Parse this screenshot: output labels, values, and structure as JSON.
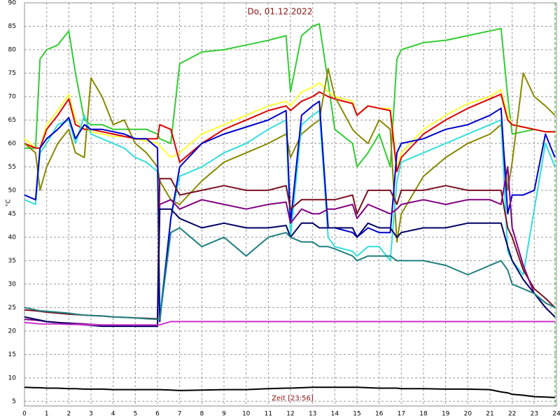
{
  "chart_data": {
    "type": "line",
    "title": "Do, 01.12.2022",
    "y_label": "°C",
    "x_label": "Zeit [23:56]",
    "xlim": [
      0,
      24
    ],
    "xticks": [
      0,
      1,
      2,
      3,
      4,
      5,
      6,
      7,
      8,
      9,
      10,
      11,
      12,
      13,
      14,
      15,
      16,
      17,
      18,
      19,
      20,
      21,
      22,
      23,
      24
    ],
    "ylim": [
      4,
      90
    ],
    "yticks": [
      5,
      10,
      15,
      20,
      25,
      30,
      35,
      40,
      45,
      50,
      55,
      60,
      65,
      70,
      75,
      80,
      85,
      90
    ],
    "grid": true,
    "x": [
      0,
      0.5,
      0.7,
      1,
      1.5,
      2,
      2.3,
      2.7,
      3,
      3.5,
      4,
      4.5,
      5,
      5.5,
      6,
      6.1,
      6.6,
      7,
      8,
      9,
      10,
      11,
      11.8,
      12,
      12.5,
      13,
      13.3,
      13.7,
      14,
      14.8,
      15,
      15.5,
      16,
      16.5,
      16.8,
      17,
      18,
      19,
      20,
      21,
      21.5,
      21.8,
      22,
      22.5,
      23,
      23.5,
      23.93
    ],
    "series": [
      {
        "color": "#33cc33",
        "values": [
          59,
          59,
          78,
          80,
          81,
          84,
          75,
          65,
          64,
          64,
          63,
          63,
          63,
          63,
          62,
          61,
          60,
          77,
          79.5,
          80,
          81,
          82,
          83,
          71,
          83,
          85,
          85.5,
          73,
          63,
          60,
          55,
          58,
          62,
          55,
          78,
          80,
          81.5,
          82,
          83,
          84,
          84.5,
          70,
          62,
          62.5,
          63,
          62.5,
          62.5
        ]
      },
      {
        "color": "#ffff33",
        "values": [
          61,
          59,
          59,
          64,
          67,
          70.5,
          65,
          63,
          62.5,
          62,
          61.5,
          61.5,
          61,
          60.5,
          60,
          59.5,
          57,
          58,
          62,
          64,
          66,
          68,
          69,
          68,
          71,
          72,
          73,
          71,
          70,
          69,
          66,
          68,
          67.5,
          67.5,
          55,
          58,
          63,
          66,
          68.5,
          70,
          71.5,
          66,
          64,
          63.5,
          63,
          62.5,
          62.5
        ]
      },
      {
        "color": "#dd0000",
        "values": [
          60,
          59,
          59,
          63,
          66,
          69.5,
          64,
          63,
          63,
          62.5,
          62,
          61.5,
          61,
          61,
          61,
          64,
          63,
          56,
          60,
          63,
          65,
          67,
          68,
          67,
          69,
          70,
          71,
          70,
          69.5,
          68.5,
          66,
          68,
          67.5,
          67,
          54,
          57,
          62,
          65,
          67.5,
          69.5,
          70.5,
          65,
          64,
          63.5,
          63,
          62.5,
          62.5
        ]
      },
      {
        "color": "#888800",
        "values": [
          60,
          58,
          50,
          55,
          60,
          63,
          58,
          57,
          74,
          70,
          64,
          65,
          60,
          58,
          55,
          52,
          48,
          47,
          52,
          56,
          58,
          60,
          62,
          57,
          62,
          64,
          65,
          76,
          70,
          63,
          62,
          60,
          65,
          63,
          39,
          45,
          53,
          57,
          60,
          62,
          64,
          50,
          56,
          75,
          70,
          68,
          66
        ]
      },
      {
        "color": "#33dddd",
        "values": [
          48,
          47,
          58,
          60,
          64,
          65,
          60,
          66,
          62,
          61,
          60,
          59,
          57,
          56,
          54,
          23,
          44,
          53,
          55,
          58,
          60,
          63,
          65,
          40,
          64,
          66,
          67,
          40,
          38,
          37,
          36,
          38,
          38,
          35,
          52,
          56,
          58,
          60,
          62,
          64,
          65,
          37,
          35,
          32,
          46,
          60,
          55
        ]
      },
      {
        "color": "#0000cc",
        "values": [
          49,
          48,
          59,
          61,
          63,
          65.5,
          61,
          64,
          63,
          63,
          62.5,
          62,
          61,
          61,
          59,
          22,
          44,
          55,
          60,
          62,
          63.5,
          65,
          67,
          43,
          66,
          68,
          69,
          42,
          42,
          41,
          40,
          42,
          41,
          41,
          58,
          60,
          61,
          63,
          64,
          66,
          67.5,
          45,
          49,
          49,
          50,
          62,
          57
        ]
      },
      {
        "color": "#7a1020",
        "values": [
          24.5,
          24.3,
          24.2,
          24,
          23.8,
          23.6,
          23.5,
          23.4,
          23.3,
          23.2,
          23,
          22.9,
          22.8,
          22.7,
          22.6,
          52.5,
          52.5,
          49,
          50,
          51,
          50,
          50,
          51,
          46,
          48,
          48,
          48,
          48,
          48,
          49,
          45,
          50,
          50,
          50,
          47,
          50,
          50,
          51,
          50,
          50,
          50,
          42,
          40,
          33,
          29,
          27,
          25
        ]
      },
      {
        "color": "#800080",
        "values": [
          22.5,
          22.3,
          22.2,
          22,
          21.8,
          21.7,
          21.6,
          21.5,
          21.4,
          21.3,
          21.2,
          21.1,
          21,
          21,
          21,
          47,
          48,
          46,
          48,
          47,
          46,
          47,
          47.5,
          43,
          46,
          45,
          45,
          46,
          46,
          47,
          44,
          47,
          46,
          45,
          46,
          47,
          48,
          47,
          48,
          48,
          47,
          55,
          42,
          34,
          28,
          25,
          23
        ]
      },
      {
        "color": "#000066",
        "values": [
          23,
          22.5,
          22.3,
          22,
          21.8,
          21.6,
          21.5,
          21.3,
          21.2,
          21,
          21,
          21,
          21,
          21,
          21,
          46,
          46,
          44,
          42,
          43,
          42,
          42,
          42.5,
          40,
          43,
          43,
          42,
          42,
          42,
          42,
          40,
          43,
          42,
          42,
          40,
          41,
          42,
          42,
          43,
          43,
          43,
          38,
          35,
          31,
          28,
          25,
          23
        ]
      },
      {
        "color": "#208080",
        "values": [
          25,
          24.5,
          24.3,
          24.2,
          24,
          23.8,
          23.6,
          23.4,
          23.3,
          23.2,
          23,
          22.9,
          22.8,
          22.6,
          22.5,
          22.5,
          41,
          42,
          38,
          40,
          36,
          40,
          41,
          40,
          39,
          39,
          38,
          38,
          37.5,
          36,
          35,
          36,
          36,
          36,
          35,
          35,
          35,
          34,
          32,
          34,
          35,
          33,
          30,
          29,
          28,
          26,
          25
        ]
      },
      {
        "color": "#cc33cc",
        "values": [
          21.8,
          21.6,
          21.5,
          21.5,
          21.5,
          21.4,
          21.4,
          21.3,
          21.3,
          21.3,
          21.3,
          21.3,
          21.3,
          21.3,
          21.3,
          21.3,
          22,
          22,
          22,
          22,
          22,
          22,
          22,
          22,
          22,
          22,
          22,
          22,
          22,
          22,
          22,
          22,
          22,
          22,
          22,
          22,
          22,
          22,
          22,
          22,
          22,
          22,
          22,
          22,
          22,
          22,
          22
        ]
      },
      {
        "color": "#000000",
        "values": [
          8,
          7.9,
          7.9,
          7.8,
          7.8,
          7.7,
          7.7,
          7.6,
          7.6,
          7.6,
          7.5,
          7.5,
          7.5,
          7.5,
          7.5,
          7.5,
          7.4,
          7.3,
          7.4,
          7.5,
          7.5,
          7.7,
          7.8,
          7.8,
          7.9,
          8,
          8,
          8,
          8,
          8,
          8,
          7.9,
          7.8,
          7.8,
          7.8,
          7.7,
          7.7,
          7.6,
          7.6,
          7.5,
          7,
          6.8,
          6.5,
          6.3,
          6,
          5.9,
          5.8
        ]
      }
    ]
  }
}
